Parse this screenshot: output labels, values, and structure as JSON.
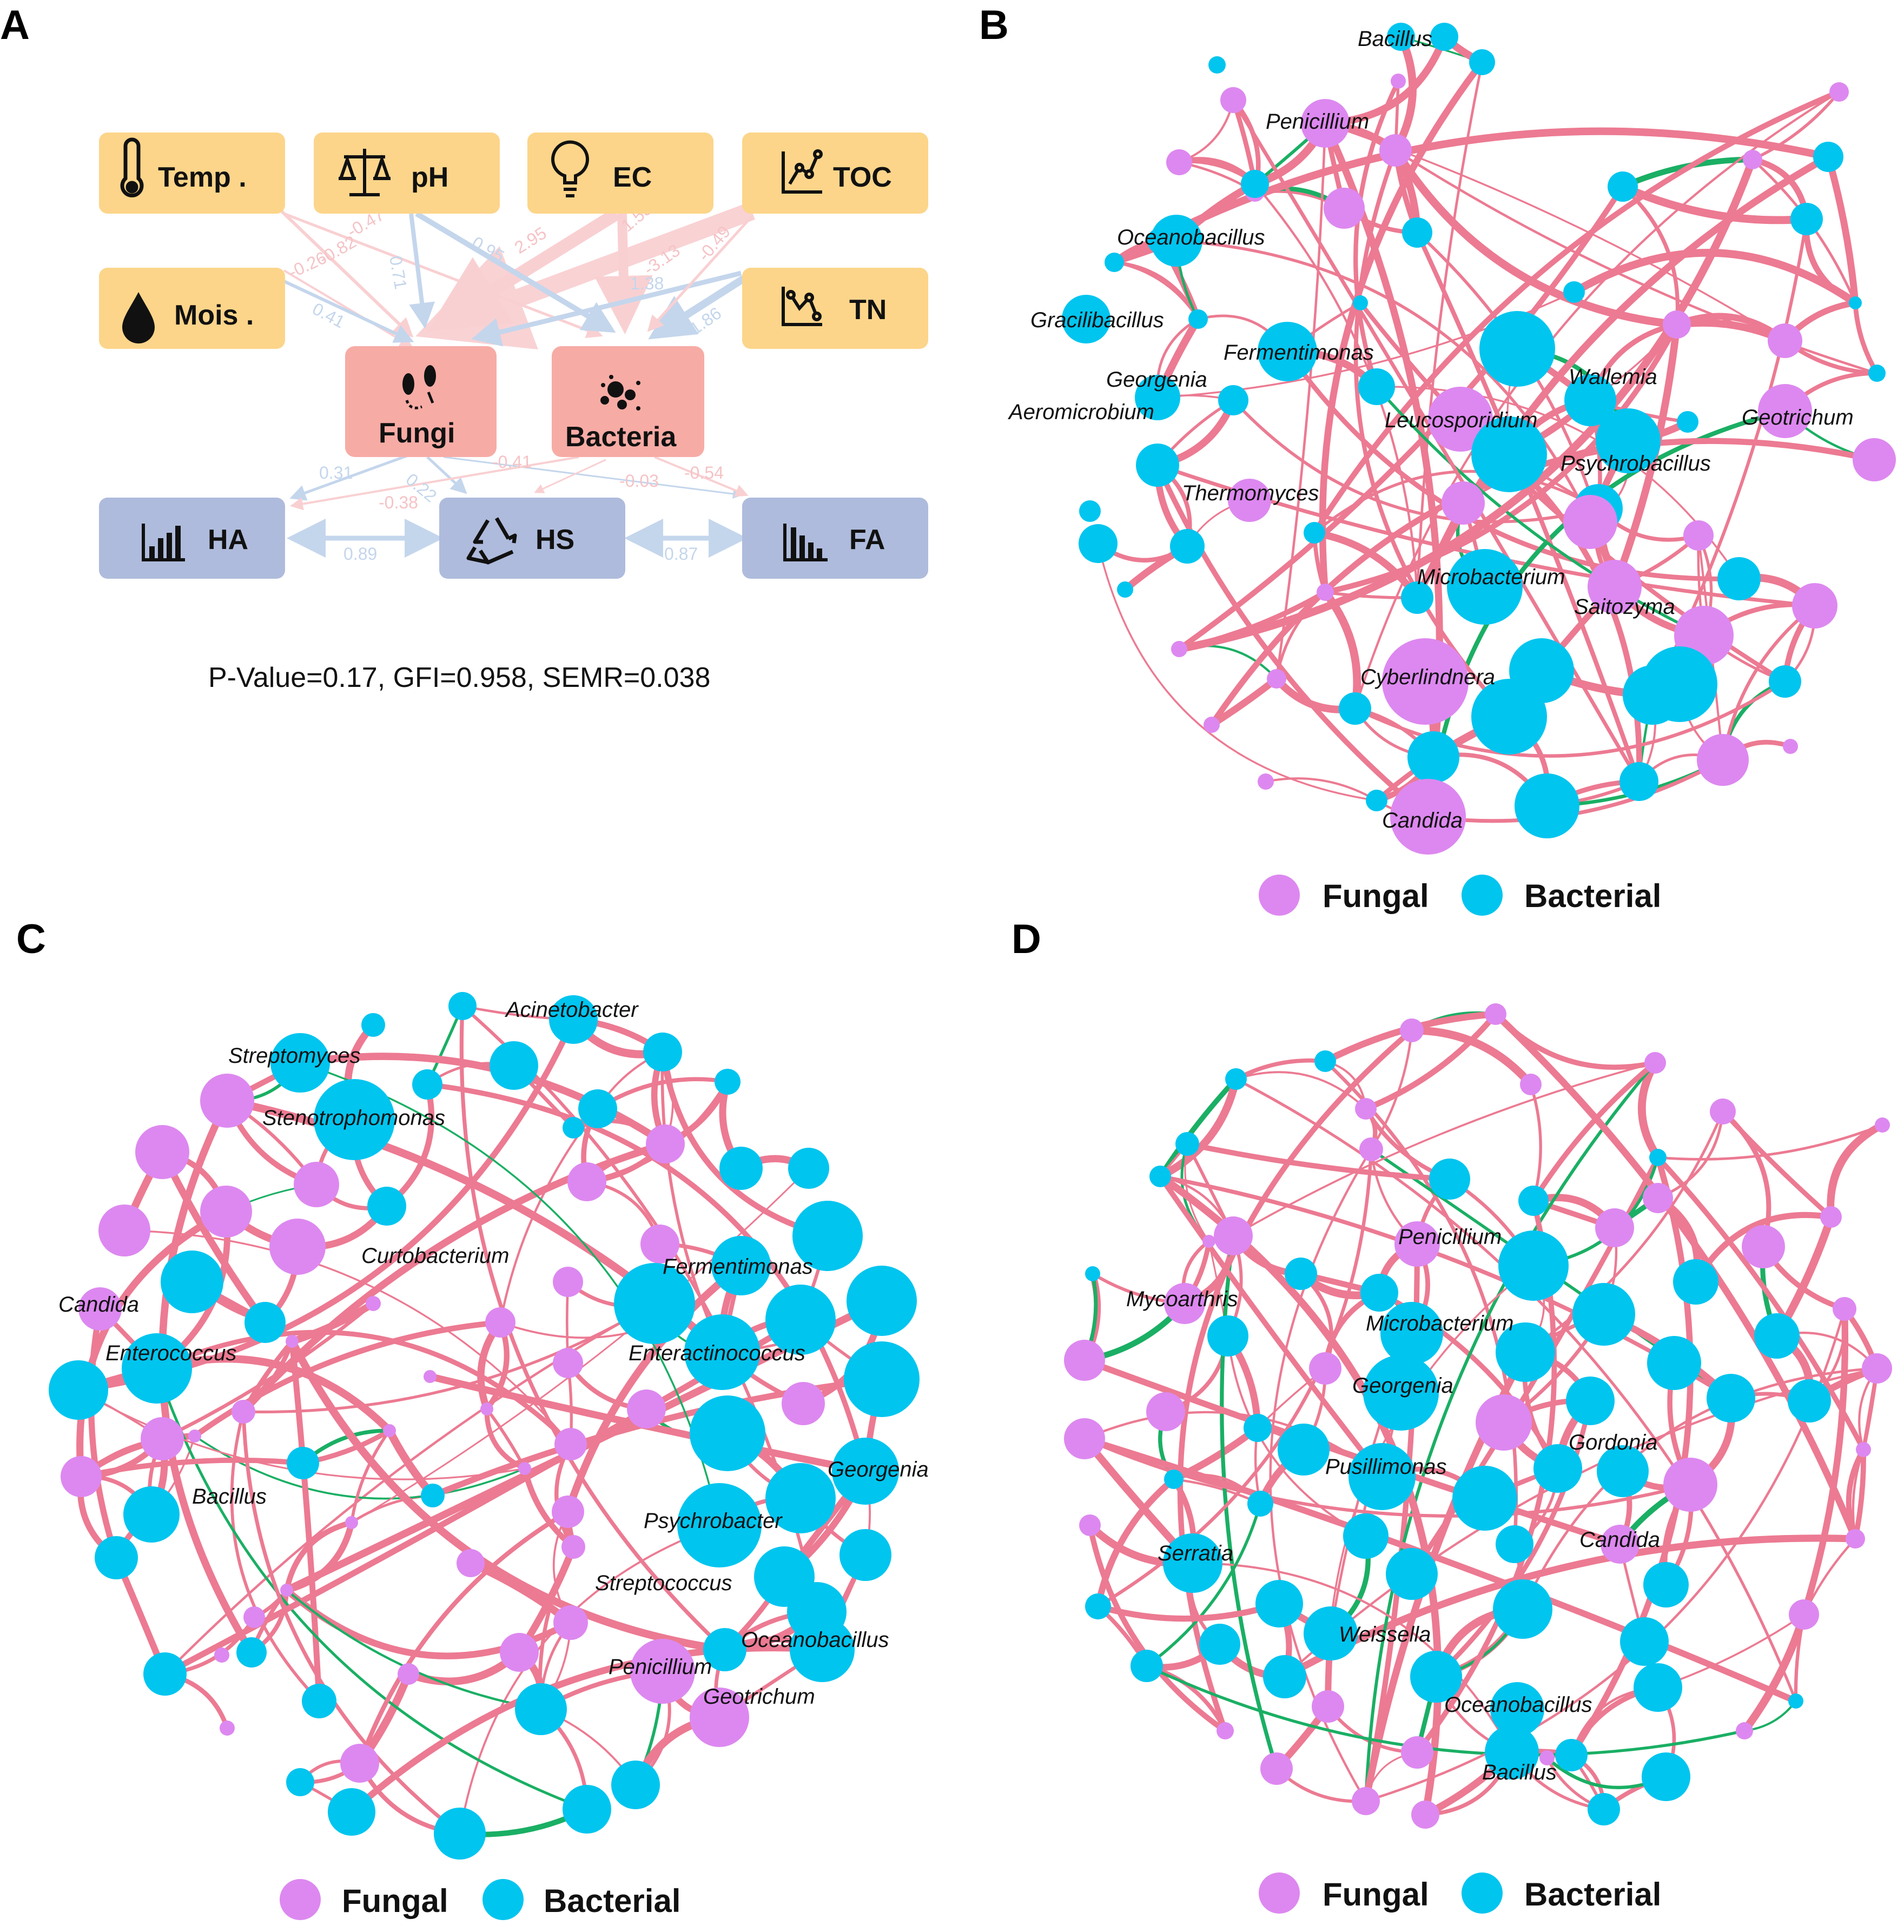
{
  "panels": {
    "a": {
      "letter": "A"
    },
    "b": {
      "letter": "B"
    },
    "c": {
      "letter": "C"
    },
    "d": {
      "letter": "D"
    }
  },
  "sem": {
    "env_vars": [
      "Temp .",
      "pH",
      "EC",
      "TOC",
      "Mois .",
      "TN"
    ],
    "microbes": [
      "Fungi",
      "Bacteria"
    ],
    "humus": [
      "HA",
      "HS",
      "FA"
    ],
    "coefficients": [
      "-0.47",
      "-0.82",
      "-0.26",
      "0.41",
      "0.71",
      "0.95",
      "2.95",
      "1.53",
      "-3.13",
      "1.38",
      "-0.49",
      "1.86",
      "0.31",
      "0.22",
      "-0.38",
      "-0.41",
      "-0.03",
      "-0.54",
      "0.89",
      "0.87"
    ],
    "stats": "P-Value=0.17, GFI=0.958, SEMR=0.038",
    "colors": {
      "env": "#fcd58a",
      "microbe": "#f7aba5",
      "humus": "#aebbdc",
      "pos_path": "#c4d6ec",
      "neg_path": "#f9d0d2"
    }
  },
  "networks": {
    "b": {
      "labels": [
        "Bacillus",
        "Penicillium",
        "Oceanobacillus",
        "Gracilibacillus",
        "Fermentimonas",
        "Georgenia",
        "Aeromicrobium",
        "Wallemia",
        "Leucosporidium",
        "Geotrichum",
        "Psychrobacillus",
        "Thermomyces",
        "Microbacterium",
        "Saitozyma",
        "Cyberlindnera",
        "Candida"
      ]
    },
    "c": {
      "labels": [
        "Acinetobacter",
        "Streptomyces",
        "Stenotrophomonas",
        "Curtobacterium",
        "Fermentimonas",
        "Candida",
        "Enterococcus",
        "Enteractinococcus",
        "Georgenia",
        "Bacillus",
        "Psychrobacter",
        "Streptococcus",
        "Oceanobacillus",
        "Penicillium",
        "Geotrichum"
      ]
    },
    "d": {
      "labels": [
        "Penicillium",
        "Mycoarthris",
        "Microbacterium",
        "Georgenia",
        "Gordonia",
        "Pusillimonas",
        "Candida",
        "Serratia",
        "Weissella",
        "Oceanobacillus",
        "Bacillus"
      ]
    },
    "colors": {
      "fungal": "#dd88f0",
      "bacterial": "#00c5ef",
      "positive_edge": "#ec7a92",
      "negative_edge": "#1aaf64"
    }
  },
  "legend": {
    "fungal": "Fungal",
    "bacterial": "Bacterial"
  }
}
